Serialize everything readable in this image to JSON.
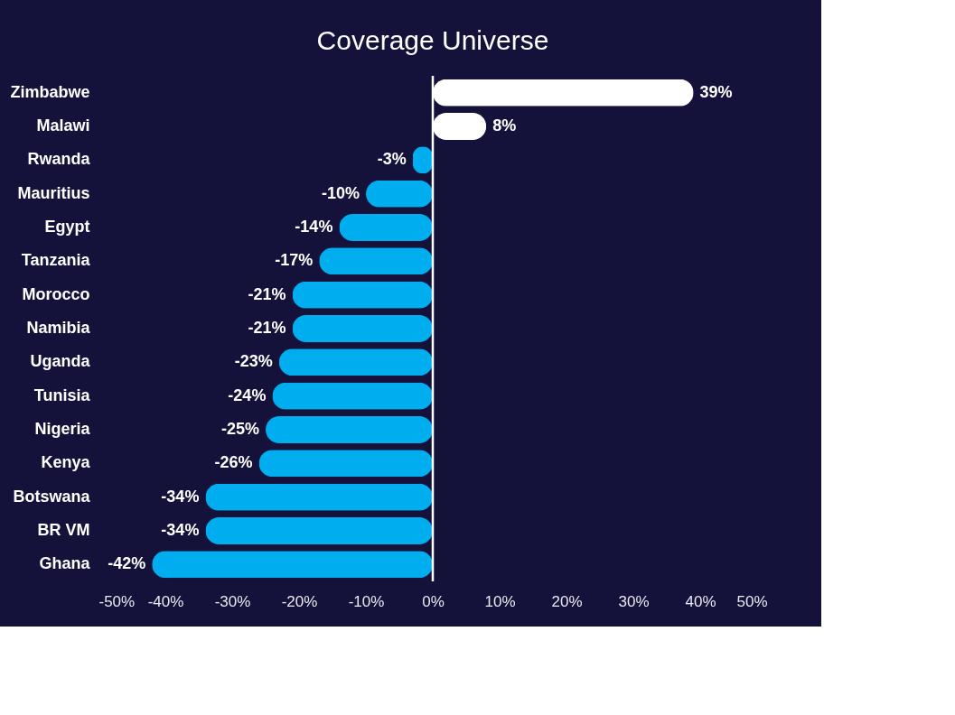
{
  "chart_data": {
    "type": "bar",
    "orientation": "horizontal",
    "title": "Coverage Universe",
    "categories": [
      "Zimbabwe",
      "Malawi",
      "Rwanda",
      "Mauritius",
      "Egypt",
      "Tanzania",
      "Morocco",
      "Namibia",
      "Uganda",
      "Tunisia",
      "Nigeria",
      "Kenya",
      "Botswana",
      "BR VM",
      "Ghana"
    ],
    "values": [
      39,
      8,
      -3,
      -10,
      -14,
      -17,
      -21,
      -21,
      -23,
      -24,
      -25,
      -26,
      -34,
      -34,
      -42
    ],
    "colors": [
      "#ffffff",
      "#ffffff",
      "#00aeef",
      "#00aeef",
      "#00aeef",
      "#00aeef",
      "#00aeef",
      "#00aeef",
      "#00aeef",
      "#00aeef",
      "#00aeef",
      "#00aeef",
      "#00aeef",
      "#00aeef",
      "#00aeef"
    ],
    "value_labels": [
      "39%",
      "8%",
      "-3%",
      "-10%",
      "-14%",
      "-17%",
      "-21%",
      "-21%",
      "-23%",
      "-24%",
      "-25%",
      "-26%",
      "-34%",
      "-34%",
      "-42%"
    ],
    "xlim": [
      -50,
      50
    ],
    "xticks": [
      {
        "value": -50,
        "label": "-50%"
      },
      {
        "value": -40,
        "label": "-40%"
      },
      {
        "value": -30,
        "label": "-30%"
      },
      {
        "value": -20,
        "label": "-20%"
      },
      {
        "value": -10,
        "label": "-10%"
      },
      {
        "value": 0,
        "label": "0%"
      },
      {
        "value": 10,
        "label": "10%"
      },
      {
        "value": 20,
        "label": "20%"
      },
      {
        "value": 30,
        "label": "30%"
      },
      {
        "value": 40,
        "label": "40%"
      },
      {
        "value": 50,
        "label": "50%"
      }
    ],
    "ref_lines": [
      {
        "axis": "x",
        "value": 0,
        "color": "#ffffff"
      }
    ],
    "grid": false
  }
}
